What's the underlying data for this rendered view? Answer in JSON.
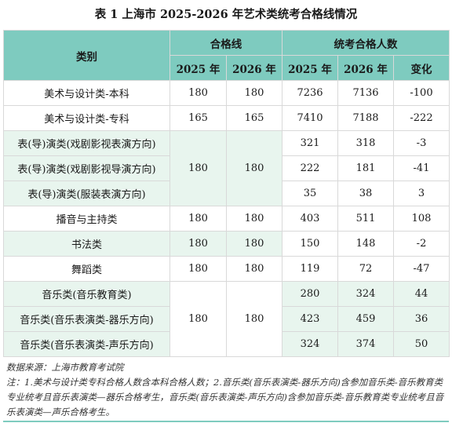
{
  "title": "表 1  上海市 2025-2026 年艺术类统考合格线情况",
  "headers": {
    "category": "类别",
    "pass_line": "合格线",
    "pass_count": "统考合格人数",
    "y2025": "2025 年",
    "y2026": "2026 年",
    "change": "变化"
  },
  "rows": [
    {
      "name": "美术与设计类-本科",
      "line2025": "180",
      "line2026": "180",
      "c2025": "7236",
      "c2026": "7136",
      "change": "-100"
    },
    {
      "name": "美术与设计类-专科",
      "line2025": "165",
      "line2026": "165",
      "c2025": "7410",
      "c2026": "7188",
      "change": "-222"
    },
    {
      "name": "表(导)演类(戏剧影视表演方向)",
      "line2025": "180",
      "line2026": "180",
      "c2025": "321",
      "c2026": "318",
      "change": "-3"
    },
    {
      "name": "表(导)演类(戏剧影视导演方向)",
      "c2025": "222",
      "c2026": "181",
      "change": "-41"
    },
    {
      "name": "表(导)演类(服装表演方向)",
      "c2025": "35",
      "c2026": "38",
      "change": "3"
    },
    {
      "name": "播音与主持类",
      "line2025": "180",
      "line2026": "180",
      "c2025": "403",
      "c2026": "511",
      "change": "108"
    },
    {
      "name": "书法类",
      "line2025": "180",
      "line2026": "180",
      "c2025": "150",
      "c2026": "148",
      "change": "-2"
    },
    {
      "name": "舞蹈类",
      "line2025": "180",
      "line2026": "180",
      "c2025": "119",
      "c2026": "72",
      "change": "-47"
    },
    {
      "name": "音乐类(音乐教育类)",
      "line2025": "180",
      "line2026": "180",
      "c2025": "280",
      "c2026": "324",
      "change": "44"
    },
    {
      "name": "音乐类(音乐表演类-器乐方向)",
      "c2025": "423",
      "c2026": "459",
      "change": "36"
    },
    {
      "name": "音乐类(音乐表演类-声乐方向)",
      "c2025": "324",
      "c2026": "374",
      "change": "50"
    }
  ],
  "source": "数据来源：上海市教育考试院",
  "note": "注：1.美术与设计类专科合格人数含本科合格人数；2.音乐类(音乐表演类-器乐方向)含参加音乐类-音乐教育类专业统考且音乐表演类—器乐合格考生，音乐类(音乐表演类-声乐方向)含参加音乐类-音乐教育类专业统考且音乐表演类—声乐合格考生。"
}
